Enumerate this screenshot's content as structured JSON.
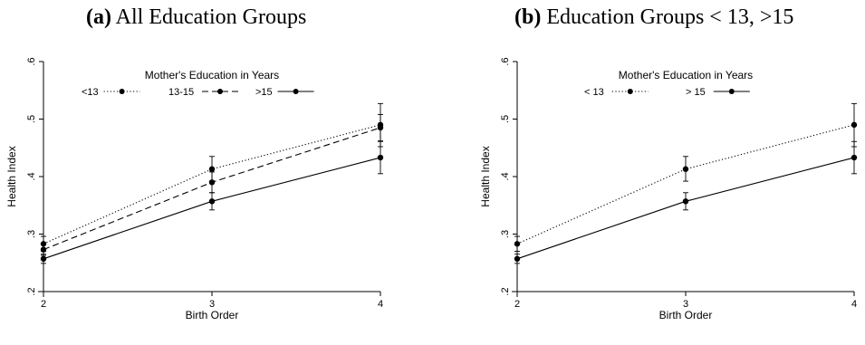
{
  "chart_data": [
    {
      "type": "line",
      "panel_letter": "(a)",
      "panel_title": "All Education Groups",
      "xlabel": "Birth Order",
      "ylabel": "Health Index",
      "x": [
        2,
        3,
        4
      ],
      "xlim": [
        2,
        4
      ],
      "ylim": [
        0.2,
        0.6
      ],
      "x_ticks": [
        "2",
        "3",
        "4"
      ],
      "y_ticks": [
        ".2",
        ".3",
        ".4",
        ".5",
        ".6"
      ],
      "grid": false,
      "legend": {
        "title": "Mother's Education in Years",
        "position": "top-center"
      },
      "series": [
        {
          "name": "<13",
          "dash": "dotted",
          "values": [
            0.283,
            0.413,
            0.49
          ],
          "ci_low": [
            0.27,
            0.392,
            0.452
          ],
          "ci_high": [
            0.296,
            0.435,
            0.527
          ]
        },
        {
          "name": "13-15",
          "dash": "dashed",
          "values": [
            0.273,
            0.39,
            0.485
          ],
          "ci_low": [
            0.263,
            0.372,
            0.462
          ],
          "ci_high": [
            0.283,
            0.408,
            0.508
          ]
        },
        {
          "name": ">15",
          "dash": "solid",
          "values": [
            0.257,
            0.357,
            0.433
          ],
          "ci_low": [
            0.249,
            0.342,
            0.405
          ],
          "ci_high": [
            0.265,
            0.372,
            0.461
          ]
        }
      ]
    },
    {
      "type": "line",
      "panel_letter": "(b)",
      "panel_title": "Education Groups < 13, >15",
      "xlabel": "Birth Order",
      "ylabel": "Health Index",
      "x": [
        2,
        3,
        4
      ],
      "xlim": [
        2,
        4
      ],
      "ylim": [
        0.2,
        0.6
      ],
      "x_ticks": [
        "2",
        "3",
        "4"
      ],
      "y_ticks": [
        ".2",
        ".3",
        ".4",
        ".5",
        ".6"
      ],
      "grid": false,
      "legend": {
        "title": "Mother's Education in Years",
        "position": "top-center"
      },
      "series": [
        {
          "name": "< 13",
          "dash": "dotted",
          "values": [
            0.283,
            0.413,
            0.49
          ],
          "ci_low": [
            0.27,
            0.392,
            0.452
          ],
          "ci_high": [
            0.296,
            0.435,
            0.527
          ]
        },
        {
          "name": "> 15",
          "dash": "solid",
          "values": [
            0.257,
            0.357,
            0.433
          ],
          "ci_low": [
            0.249,
            0.342,
            0.405
          ],
          "ci_high": [
            0.265,
            0.372,
            0.461
          ]
        }
      ]
    }
  ]
}
